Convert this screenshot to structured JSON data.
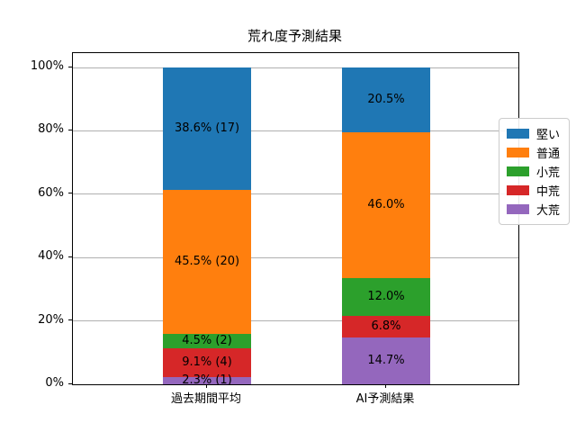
{
  "chart_data": {
    "type": "bar",
    "stacked": true,
    "title": "荒れ度予測結果",
    "categories": [
      "過去期間平均",
      "AI予測結果"
    ],
    "series": [
      {
        "name": "堅い",
        "color": "#1f77b4",
        "values": [
          38.6,
          20.5
        ],
        "labels": [
          "38.6% (17)",
          "20.5%"
        ]
      },
      {
        "name": "普通",
        "color": "#ff7f0e",
        "values": [
          45.5,
          46.0
        ],
        "labels": [
          "45.5% (20)",
          "46.0%"
        ]
      },
      {
        "name": "小荒",
        "color": "#2ca02c",
        "values": [
          4.5,
          12.0
        ],
        "labels": [
          "4.5% (2)",
          "12.0%"
        ]
      },
      {
        "name": "中荒",
        "color": "#d62728",
        "values": [
          9.1,
          6.8
        ],
        "labels": [
          "9.1% (4)",
          "6.8%"
        ]
      },
      {
        "name": "大荒",
        "color": "#9467bd",
        "values": [
          2.3,
          14.7
        ],
        "labels": [
          "2.3% (1)",
          "14.7%"
        ]
      }
    ],
    "stack_order_bottom_up": [
      "大荒",
      "中荒",
      "小荒",
      "普通",
      "堅い"
    ],
    "legend_order_top_down": [
      "堅い",
      "普通",
      "小荒",
      "中荒",
      "大荒"
    ],
    "y_ticks": [
      {
        "pct": 0,
        "label": "0%"
      },
      {
        "pct": 20,
        "label": "20%"
      },
      {
        "pct": 40,
        "label": "40%"
      },
      {
        "pct": 60,
        "label": "60%"
      },
      {
        "pct": 80,
        "label": "80%"
      },
      {
        "pct": 100,
        "label": "100%"
      }
    ],
    "ylim": [
      0,
      104.5
    ],
    "grid": true,
    "grid_color": "#b0b0b0",
    "legend_position": "center-right"
  }
}
